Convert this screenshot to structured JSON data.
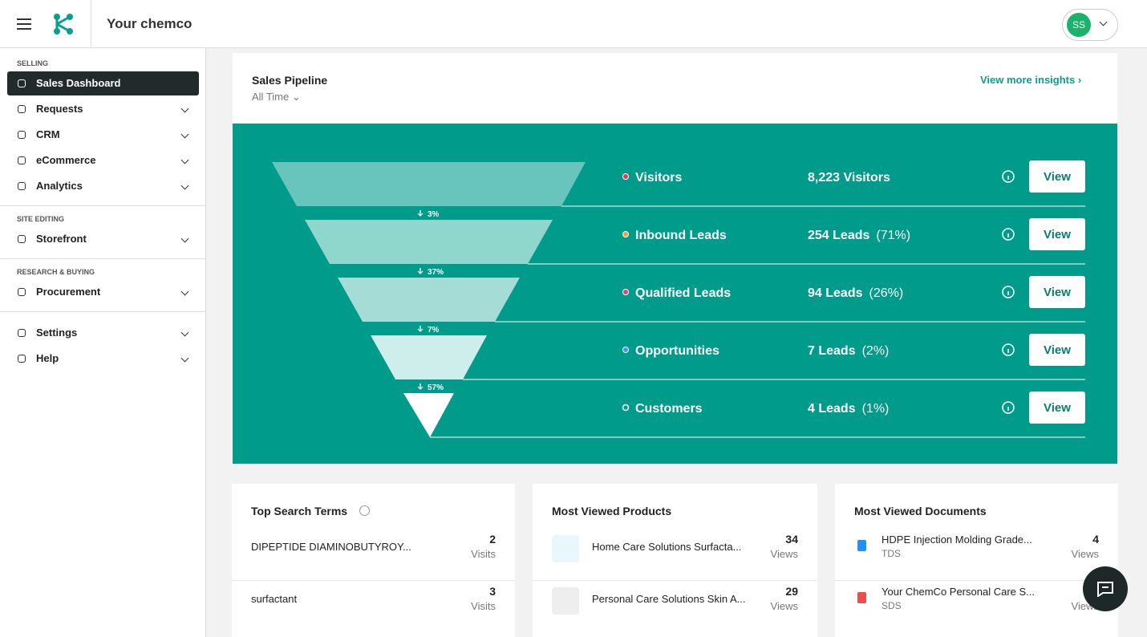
{
  "header": {
    "app_title": "Your chemco",
    "avatar": "SS"
  },
  "sidebar": {
    "sections": [
      {
        "label": "SELLING",
        "items": [
          "Sales Dashboard",
          "Requests",
          "CRM",
          "eCommerce",
          "Analytics"
        ]
      },
      {
        "label": "SITE EDITING",
        "items": [
          "Storefront"
        ]
      },
      {
        "label": "RESEARCH & BUYING",
        "items": [
          "Procurement"
        ]
      },
      {
        "items": [
          "Settings",
          "Help"
        ]
      }
    ]
  },
  "pipeline": {
    "title": "Sales Pipeline",
    "period": "All Time",
    "link": "View more insights",
    "stages": [
      {
        "name": "Visitors",
        "count": "8,223 Visitors",
        "button": "View"
      },
      {
        "name": "Inbound Leads",
        "count": "254 Leads",
        "share": "(71%)",
        "button": "View"
      },
      {
        "name": "Qualified Leads",
        "count": "94 Leads",
        "share": "(26%)",
        "button": "View"
      },
      {
        "name": "Opportunities",
        "count": "7 Leads",
        "share": "(2%)",
        "button": "View"
      },
      {
        "name": "Customers",
        "count": "4 Leads",
        "share": "(1%)",
        "button": "View"
      }
    ],
    "conversions": [
      "3%",
      "37%",
      "7%",
      "57%"
    ]
  },
  "cards": [
    {
      "title": "Top Search Terms",
      "rows": [
        {
          "name": "DIPEPTIDE DIAMINOBUTYROY...",
          "count": "2",
          "unit": "Visits"
        },
        {
          "name": "surfactant",
          "count": "3",
          "unit": "Visits"
        }
      ]
    },
    {
      "title": "Most Viewed Products",
      "rows": [
        {
          "name": "Home Care Solutions Surfacta...",
          "count": "34",
          "unit": "Views"
        },
        {
          "name": "Personal Care Solutions Skin A...",
          "count": "29",
          "unit": "Views"
        }
      ]
    },
    {
      "title": "Most Viewed Documents",
      "rows": [
        {
          "name": "HDPE Injection Molding Grade...",
          "type": "TDS",
          "count": "4",
          "unit": "Views"
        },
        {
          "name": "Your ChemCo Personal Care S...",
          "type": "SDS",
          "unit": "Views"
        }
      ]
    }
  ]
}
